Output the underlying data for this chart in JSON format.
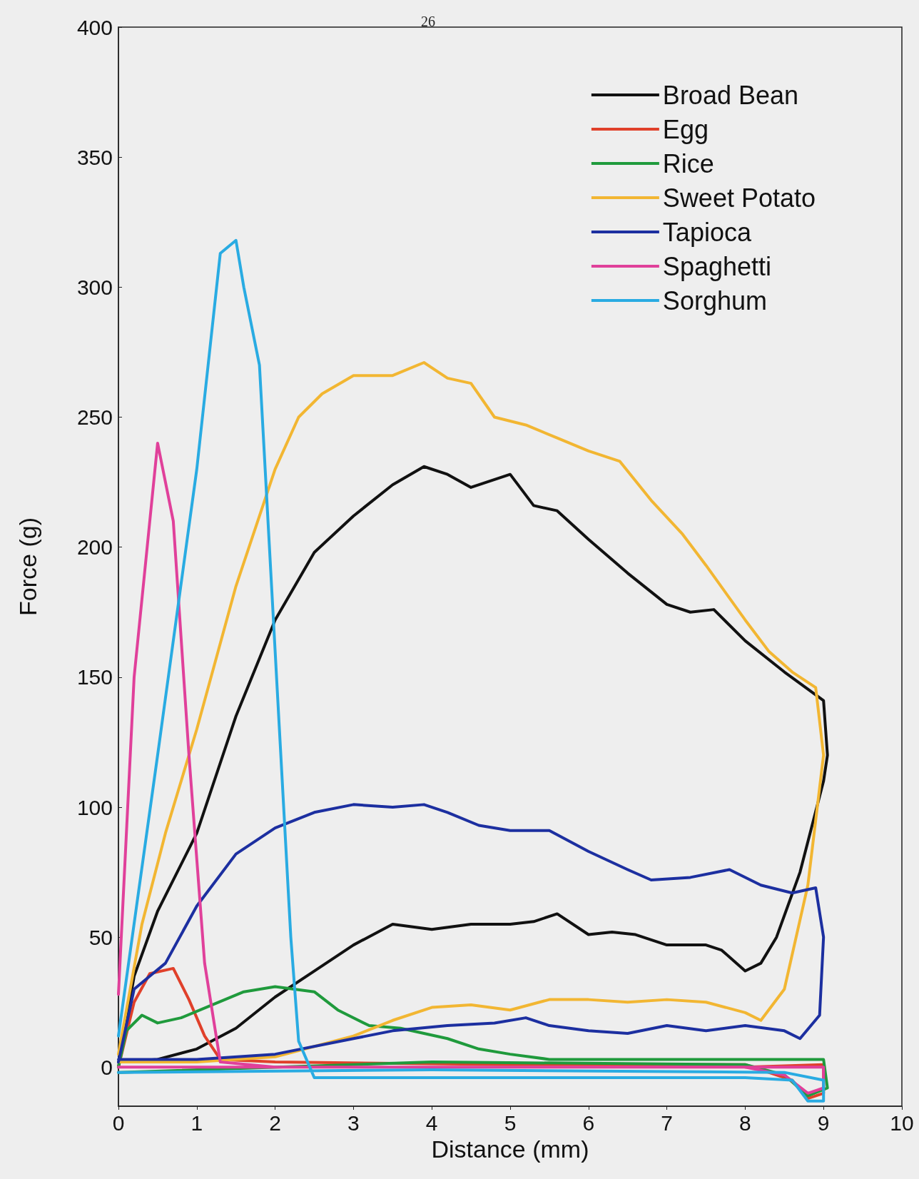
{
  "chart_data": {
    "type": "line",
    "xlabel": "Distance (mm)",
    "ylabel": "Force (g)",
    "annotations": [
      "26"
    ],
    "xlim": [
      0,
      10
    ],
    "xticks": [
      0,
      1,
      2,
      3,
      4,
      5,
      6,
      7,
      8,
      9,
      10
    ],
    "ylim": [
      -15,
      400
    ],
    "yticks": [
      0,
      50,
      100,
      150,
      200,
      250,
      300,
      350,
      400
    ],
    "grid": false,
    "legend": "top right",
    "marker": "none",
    "line_style": "solid",
    "series": [
      {
        "name": "Broad Bean",
        "color": "#111111",
        "x": [
          0,
          0.2,
          0.5,
          1,
          1.5,
          2,
          2.5,
          3,
          3.5,
          3.9,
          4.2,
          4.5,
          5,
          5.3,
          5.6,
          6,
          6.5,
          7,
          7.3,
          7.6,
          8,
          8.5,
          9,
          9.05,
          9,
          8.7,
          8.4,
          8.2,
          8,
          7.7,
          7.5,
          7,
          6.6,
          6.3,
          6,
          5.6,
          5.3,
          5,
          4.5,
          4,
          3.5,
          3,
          2.5,
          2,
          1.5,
          1,
          0.5,
          0
        ],
        "values": [
          0,
          35,
          60,
          90,
          135,
          172,
          198,
          212,
          224,
          231,
          228,
          223,
          228,
          216,
          214,
          203,
          190,
          178,
          175,
          176,
          164,
          152,
          141,
          120,
          110,
          75,
          50,
          40,
          37,
          45,
          47,
          47,
          51,
          52,
          51,
          59,
          56,
          55,
          55,
          53,
          55,
          47,
          37,
          27,
          15,
          7,
          3,
          2
        ]
      },
      {
        "name": "Egg",
        "color": "#e0402a",
        "x": [
          0,
          0.2,
          0.4,
          0.7,
          0.9,
          1.1,
          1.3,
          2,
          5,
          8,
          8.6,
          8.8,
          9,
          9,
          8
        ],
        "values": [
          0,
          25,
          36,
          38,
          26,
          12,
          3,
          2,
          1,
          1,
          -5,
          -12,
          -10,
          1,
          0
        ]
      },
      {
        "name": "Rice",
        "color": "#1f9a3c",
        "x": [
          0,
          0.1,
          0.3,
          0.5,
          0.8,
          1.2,
          1.6,
          2,
          2.5,
          2.8,
          3.2,
          3.6,
          4.2,
          4.6,
          5,
          5.5,
          6,
          8,
          9,
          9.05,
          8.8,
          8.5,
          8,
          4,
          0
        ],
        "values": [
          0,
          14,
          20,
          17,
          19,
          24,
          29,
          31,
          29,
          22,
          16,
          15,
          11,
          7,
          5,
          3,
          3,
          3,
          3,
          -8,
          -11,
          -3,
          1,
          2,
          -2
        ]
      },
      {
        "name": "Sweet Potato",
        "color": "#f2b632",
        "x": [
          0,
          0.3,
          0.6,
          1,
          1.5,
          2,
          2.3,
          2.6,
          3,
          3.5,
          3.9,
          4.2,
          4.5,
          4.8,
          5.2,
          5.6,
          6,
          6.4,
          6.8,
          7.2,
          7.5,
          8,
          8.3,
          8.6,
          8.9,
          9,
          8.8,
          8.5,
          8.2,
          8,
          7.5,
          7,
          6.5,
          6,
          5.5,
          5,
          4.5,
          4,
          3.5,
          3,
          2.5,
          2,
          1,
          0
        ],
        "values": [
          5,
          55,
          90,
          130,
          185,
          230,
          250,
          259,
          266,
          266,
          271,
          265,
          263,
          250,
          247,
          242,
          237,
          233,
          218,
          205,
          193,
          172,
          160,
          152,
          146,
          120,
          70,
          30,
          18,
          21,
          25,
          26,
          25,
          26,
          26,
          22,
          24,
          23,
          18,
          12,
          8,
          4,
          2,
          2
        ]
      },
      {
        "name": "Tapioca",
        "color": "#1c2fa0",
        "x": [
          0,
          0.2,
          0.4,
          0.6,
          1,
          1.5,
          2,
          2.5,
          3,
          3.5,
          3.9,
          4.2,
          4.6,
          5,
          5.5,
          6,
          6.5,
          6.8,
          7.3,
          7.8,
          8.2,
          8.6,
          8.9,
          9,
          8.95,
          8.7,
          8.5,
          8,
          7.5,
          7,
          6.5,
          6,
          5.5,
          5.2,
          4.8,
          4.2,
          3.5,
          3,
          2,
          1,
          0
        ],
        "values": [
          2,
          30,
          35,
          40,
          62,
          82,
          92,
          98,
          101,
          100,
          101,
          98,
          93,
          91,
          91,
          83,
          76,
          72,
          73,
          76,
          70,
          67,
          69,
          50,
          20,
          11,
          14,
          16,
          14,
          16,
          13,
          14,
          16,
          19,
          17,
          16,
          14,
          11,
          5,
          3,
          3
        ]
      },
      {
        "name": "Spaghetti",
        "color": "#e0409a",
        "x": [
          0,
          0.2,
          0.5,
          0.7,
          0.9,
          1.1,
          1.3,
          2,
          5,
          8,
          8.5,
          8.8,
          9,
          9,
          8,
          4,
          0
        ],
        "values": [
          28,
          150,
          240,
          210,
          120,
          40,
          2,
          0,
          0,
          0,
          -3,
          -10,
          -8,
          0,
          0,
          0,
          0
        ]
      },
      {
        "name": "Sorghum",
        "color": "#29abe2",
        "x": [
          0,
          0.5,
          1,
          1.3,
          1.5,
          1.6,
          1.8,
          2,
          2.2,
          2.3,
          2.5,
          4,
          8,
          8.6,
          8.8,
          9,
          9,
          8.5,
          4,
          0
        ],
        "values": [
          12,
          120,
          230,
          313,
          318,
          300,
          270,
          160,
          50,
          10,
          -4,
          -4,
          -4,
          -5,
          -13,
          -13,
          -5,
          -2,
          -1,
          -2
        ]
      }
    ]
  }
}
